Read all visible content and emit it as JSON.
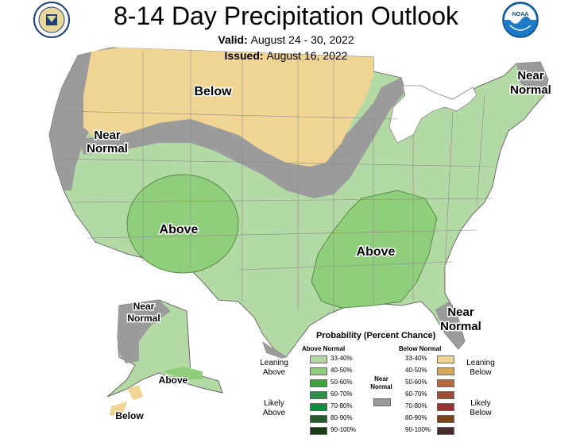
{
  "header": {
    "title": "8-14 Day Precipitation Outlook",
    "valid_label": "Valid:",
    "valid_value": "August 24 - 30, 2022",
    "issued_label": "Issued:",
    "issued_value": "August 16, 2022",
    "left_logo": "doc-seal-icon",
    "right_logo": "noaa-logo-icon",
    "right_logo_text": "NOAA"
  },
  "map_labels": {
    "below_north": "Below",
    "near_normal_west_1": "Near",
    "near_normal_west_2": "Normal",
    "near_normal_ne_1": "Near",
    "near_normal_ne_2": "Normal",
    "above_sw": "Above",
    "above_se": "Above",
    "near_normal_fl_1": "Near",
    "near_normal_fl_2": "Normal",
    "ak_near_1": "Near",
    "ak_near_2": "Normal",
    "ak_above": "Above",
    "ak_below": "Below"
  },
  "legend": {
    "title": "Probability (Percent Chance)",
    "above_header": "Above Normal",
    "below_header": "Below Normal",
    "near_label_1": "Near",
    "near_label_2": "Normal",
    "leaning_above_1": "Leaning",
    "leaning_above_2": "Above",
    "likely_above_1": "Likely",
    "likely_above_2": "Above",
    "leaning_below_1": "Leaning",
    "leaning_below_2": "Below",
    "likely_below_1": "Likely",
    "likely_below_2": "Below",
    "above_bins": [
      "33-40%",
      "40-50%",
      "50-60%",
      "60-70%",
      "70-80%",
      "80-90%",
      "90-100%"
    ],
    "below_bins": [
      "33-40%",
      "40-50%",
      "50-60%",
      "60-70%",
      "70-80%",
      "80-90%",
      "90-100%"
    ]
  },
  "colors": {
    "above": [
      "#b3d9a5",
      "#8fce7a",
      "#3aa339",
      "#2f8f4a",
      "#108a3c",
      "#235c2d",
      "#1b3b16"
    ],
    "below": [
      "#f0d493",
      "#d8a857",
      "#b9683d",
      "#9b4f35",
      "#93342f",
      "#7a4518",
      "#4a2a2a"
    ],
    "near_normal": "#9b9b9b",
    "lakes_background": "#ffffff",
    "state_lines": "#888888"
  }
}
